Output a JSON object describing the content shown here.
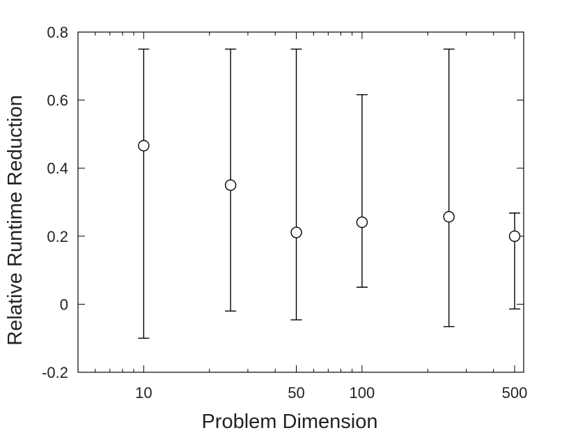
{
  "chart_data": {
    "type": "scatter",
    "title": "",
    "xlabel": "Problem Dimension",
    "ylabel": "Relative Runtime Reduction",
    "xscale": "log",
    "xlim": [
      5,
      550
    ],
    "ylim": [
      -0.2,
      0.8
    ],
    "xticks": [
      10,
      50,
      100,
      500
    ],
    "xtick_labels": [
      "10",
      "50",
      "100",
      "500"
    ],
    "yticks": [
      -0.2,
      0,
      0.2,
      0.4,
      0.6,
      0.8
    ],
    "ytick_labels": [
      "-0.2",
      "0",
      "0.2",
      "0.4",
      "0.6",
      "0.8"
    ],
    "grid": false,
    "legend": "none",
    "marker": "open-circle",
    "color": "#000000",
    "points": [
      {
        "x": 10,
        "y": 0.466,
        "ymin": -0.1,
        "ymax": 0.75
      },
      {
        "x": 25,
        "y": 0.35,
        "ymin": -0.02,
        "ymax": 0.75
      },
      {
        "x": 50,
        "y": 0.211,
        "ymin": -0.046,
        "ymax": 0.75
      },
      {
        "x": 100,
        "y": 0.241,
        "ymin": 0.05,
        "ymax": 0.616
      },
      {
        "x": 250,
        "y": 0.257,
        "ymin": -0.066,
        "ymax": 0.75
      },
      {
        "x": 500,
        "y": 0.2,
        "ymin": -0.014,
        "ymax": 0.268
      }
    ]
  }
}
